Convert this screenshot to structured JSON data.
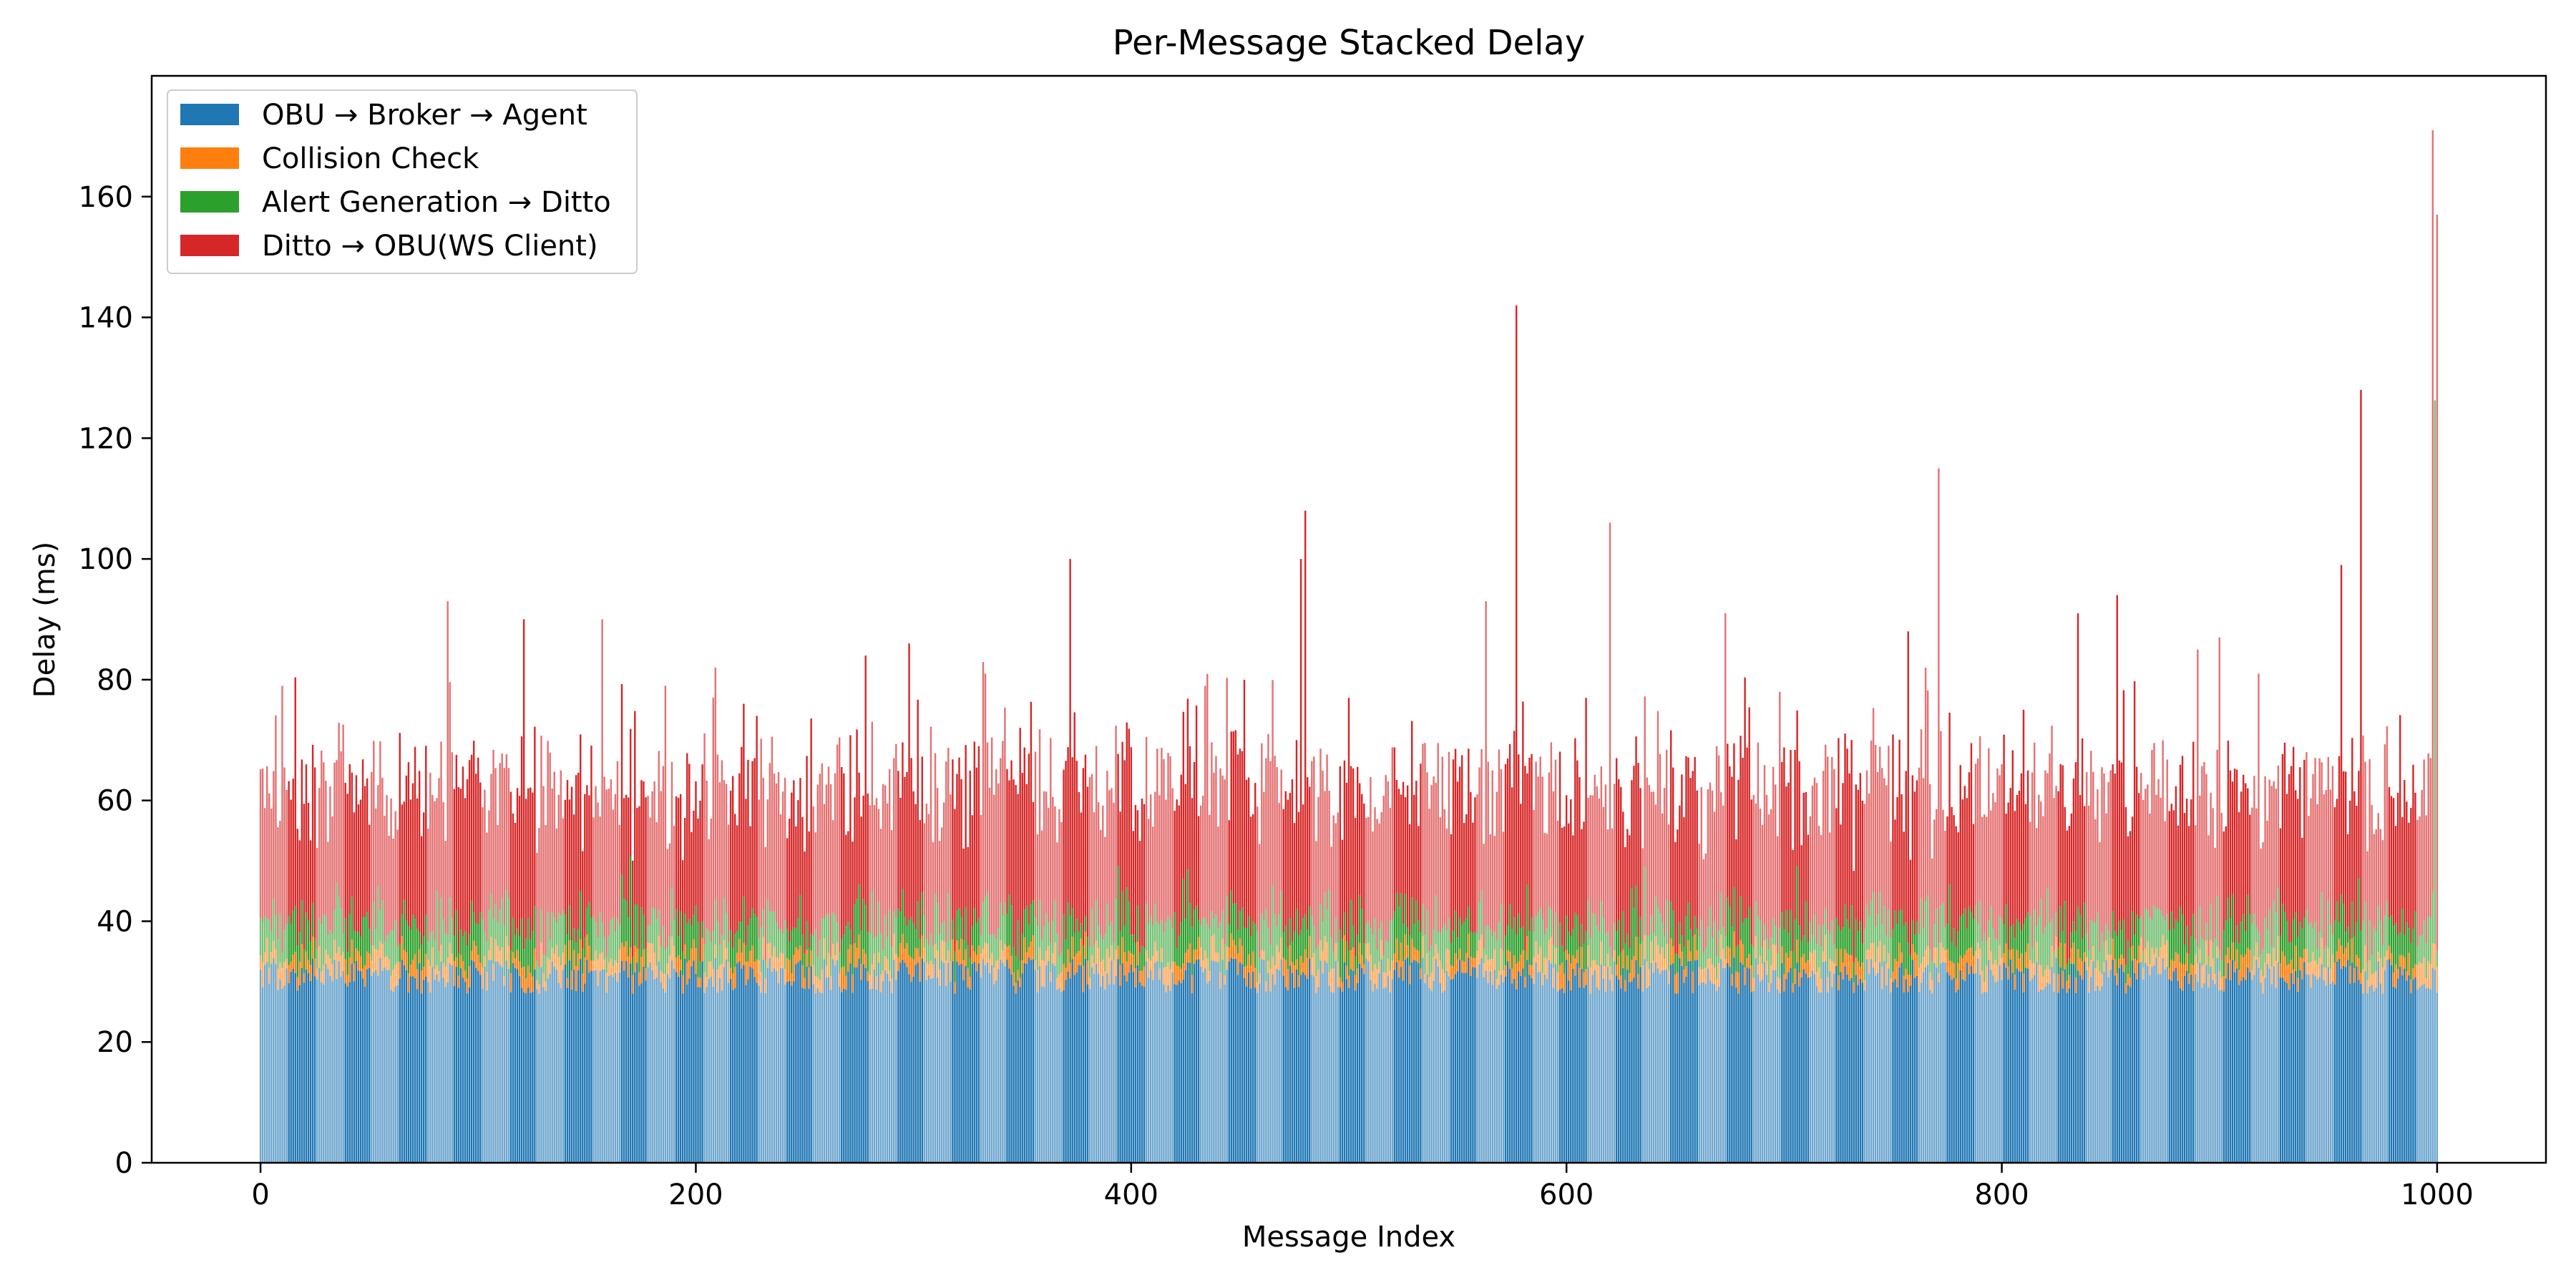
{
  "chart_data": {
    "type": "bar",
    "stacked": true,
    "title": "Per-Message Stacked Delay",
    "xlabel": "Message Index",
    "ylabel": "Delay (ms)",
    "xlim": [
      -50,
      1050
    ],
    "ylim": [
      0,
      180
    ],
    "xticks": [
      0,
      200,
      400,
      600,
      800,
      1000
    ],
    "yticks": [
      0,
      20,
      40,
      60,
      80,
      100,
      120,
      140,
      160
    ],
    "grid": false,
    "legend_position": "top-left",
    "n_messages": 1000,
    "series": [
      {
        "name": "OBU → Broker → Agent",
        "color": "#1f77b4",
        "typical": 29
      },
      {
        "name": "Collision Check",
        "color": "#ff7f0e",
        "typical": 2.5
      },
      {
        "name": "Alert Generation → Ditto",
        "color": "#2ca02c",
        "typical": 4.5
      },
      {
        "name": "Ditto → OBU(WS Client)",
        "color": "#d62728",
        "typical": 18
      }
    ],
    "total_spikes": [
      {
        "x": 10,
        "y": 79
      },
      {
        "x": 86,
        "y": 93
      },
      {
        "x": 121,
        "y": 90
      },
      {
        "x": 157,
        "y": 90
      },
      {
        "x": 186,
        "y": 79
      },
      {
        "x": 209,
        "y": 82
      },
      {
        "x": 228,
        "y": 74
      },
      {
        "x": 278,
        "y": 84
      },
      {
        "x": 298,
        "y": 86
      },
      {
        "x": 333,
        "y": 81
      },
      {
        "x": 372,
        "y": 100
      },
      {
        "x": 434,
        "y": 79
      },
      {
        "x": 452,
        "y": 80
      },
      {
        "x": 478,
        "y": 100
      },
      {
        "x": 480,
        "y": 108
      },
      {
        "x": 500,
        "y": 77
      },
      {
        "x": 563,
        "y": 93
      },
      {
        "x": 577,
        "y": 142
      },
      {
        "x": 609,
        "y": 77
      },
      {
        "x": 620,
        "y": 106
      },
      {
        "x": 673,
        "y": 91
      },
      {
        "x": 698,
        "y": 78
      },
      {
        "x": 757,
        "y": 88
      },
      {
        "x": 765,
        "y": 82
      },
      {
        "x": 771,
        "y": 115
      },
      {
        "x": 835,
        "y": 91
      },
      {
        "x": 853,
        "y": 94
      },
      {
        "x": 890,
        "y": 85
      },
      {
        "x": 900,
        "y": 87
      },
      {
        "x": 918,
        "y": 81
      },
      {
        "x": 956,
        "y": 99
      },
      {
        "x": 965,
        "y": 128
      },
      {
        "x": 998,
        "y": 171
      },
      {
        "x": 1000,
        "y": 157
      }
    ]
  }
}
